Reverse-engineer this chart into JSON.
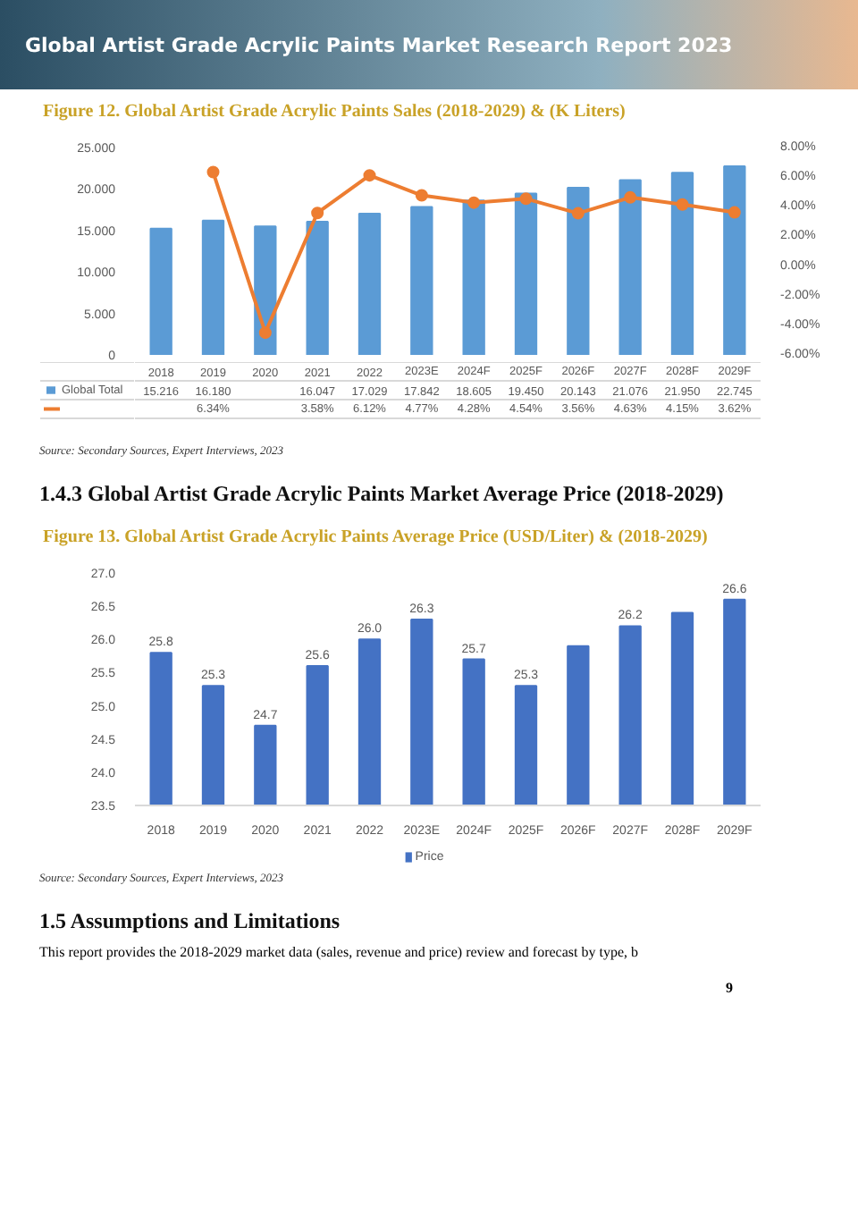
{
  "chart_data": [
    {
      "type": "bar",
      "title": "Figure 12.   Global Artist Grade Acrylic Paints Sales (2018-2029) & (K Liters)",
      "annotations": [
        "Global Artist Grade Acrylic Paints Market Research Report 2023",
        "Source: Secondary Sources, Expert Interviews, 2023",
        "1.4.3  Global Artist Grade Acrylic Paints Market Average Price (2018-2029)"
      ],
      "categories": [
        "2018",
        "2019",
        "2020",
        "2021",
        "2022",
        "2023E",
        "2024F",
        "2025F",
        "2026F",
        "2027F",
        "2028F",
        "2029F"
      ],
      "series": [
        {
          "name": "Global Total",
          "color": "#5b9bd5",
          "values": [
            15.216,
            16.18,
            15.5,
            16.047,
            17.029,
            17.842,
            18.605,
            19.45,
            20.143,
            21.076,
            21.95,
            22.745
          ],
          "value_labels": [
            "15.216",
            "16.180",
            null,
            "16.047",
            "17.029",
            "17.842",
            "18.605",
            "19.450",
            "20.143",
            "21.076",
            "21.950",
            "22.745"
          ]
        },
        {
          "type": "line",
          "axis": "y2",
          "color": "#ed7d31",
          "marker": "circle",
          "values": [
            null,
            6.34,
            -4.5,
            3.58,
            6.12,
            4.77,
            4.28,
            4.54,
            3.56,
            4.63,
            4.15,
            3.62
          ],
          "value_labels": [
            null,
            "6.34%",
            null,
            "3.58%",
            "6.12%",
            "4.77%",
            "4.28%",
            "4.54%",
            "3.56%",
            "4.63%",
            "4.15%",
            "3.62%"
          ]
        }
      ],
      "ylim": [
        0,
        25
      ],
      "yticks": [
        {
          "value": 0,
          "label": "0"
        },
        {
          "value": 5,
          "label": "5.000"
        },
        {
          "value": 10,
          "label": "10.000"
        },
        {
          "value": 15,
          "label": "15.000"
        },
        {
          "value": 20,
          "label": "20.000"
        },
        {
          "value": 25,
          "label": "25.000"
        }
      ],
      "y2lim": [
        -6,
        8
      ],
      "y2ticks": [
        {
          "value": -6,
          "label": "-6.00%"
        },
        {
          "value": -4,
          "label": "-4.00%"
        },
        {
          "value": -2,
          "label": "-2.00%"
        },
        {
          "value": 0,
          "label": "0.00%"
        },
        {
          "value": 2,
          "label": "2.00%"
        },
        {
          "value": 4,
          "label": "4.00%"
        },
        {
          "value": 6,
          "label": "6.00%"
        },
        {
          "value": 8,
          "label": "8.00%"
        }
      ],
      "legend": "bottom"
    },
    {
      "type": "bar",
      "title": "Figure 13.   Global Artist Grade Acrylic Paints Average Price (USD/Liter) & (2018-2029)",
      "annotations": [
        "Source: Secondary Sources, Expert Interviews, 2023",
        "1.5  Assumptions and Limitations",
        "This report provides the 2018-2029 market data (sales, revenue and price) review and forecast by type, b",
        "9"
      ],
      "categories": [
        "2018",
        "2019",
        "2020",
        "2021",
        "2022",
        "2023E",
        "2024F",
        "2025F",
        "2026F",
        "2027F",
        "2028F",
        "2029F"
      ],
      "series": [
        {
          "name": "Price",
          "color": "#4472c4",
          "values": [
            25.8,
            25.3,
            24.7,
            25.6,
            26.0,
            26.3,
            25.7,
            25.3,
            25.9,
            26.2,
            26.4,
            26.6
          ],
          "value_labels": [
            "25.8",
            "25.3",
            "24.7",
            "25.6",
            "26.0",
            "26.3",
            "25.7",
            "25.3",
            null,
            "26.2",
            null,
            "26.6"
          ]
        }
      ],
      "ylim": [
        23.5,
        27.0
      ],
      "yticks": [
        {
          "value": 23.5,
          "label": "23.5"
        },
        {
          "value": 24,
          "label": "24.0"
        },
        {
          "value": 24.5,
          "label": "24.5"
        },
        {
          "value": 25,
          "label": "25.0"
        },
        {
          "value": 25.5,
          "label": "25.5"
        },
        {
          "value": 26,
          "label": "26.0"
        },
        {
          "value": 26.5,
          "label": "26.5"
        },
        {
          "value": 27,
          "label": "27.0"
        }
      ],
      "legend": "bottom"
    }
  ]
}
